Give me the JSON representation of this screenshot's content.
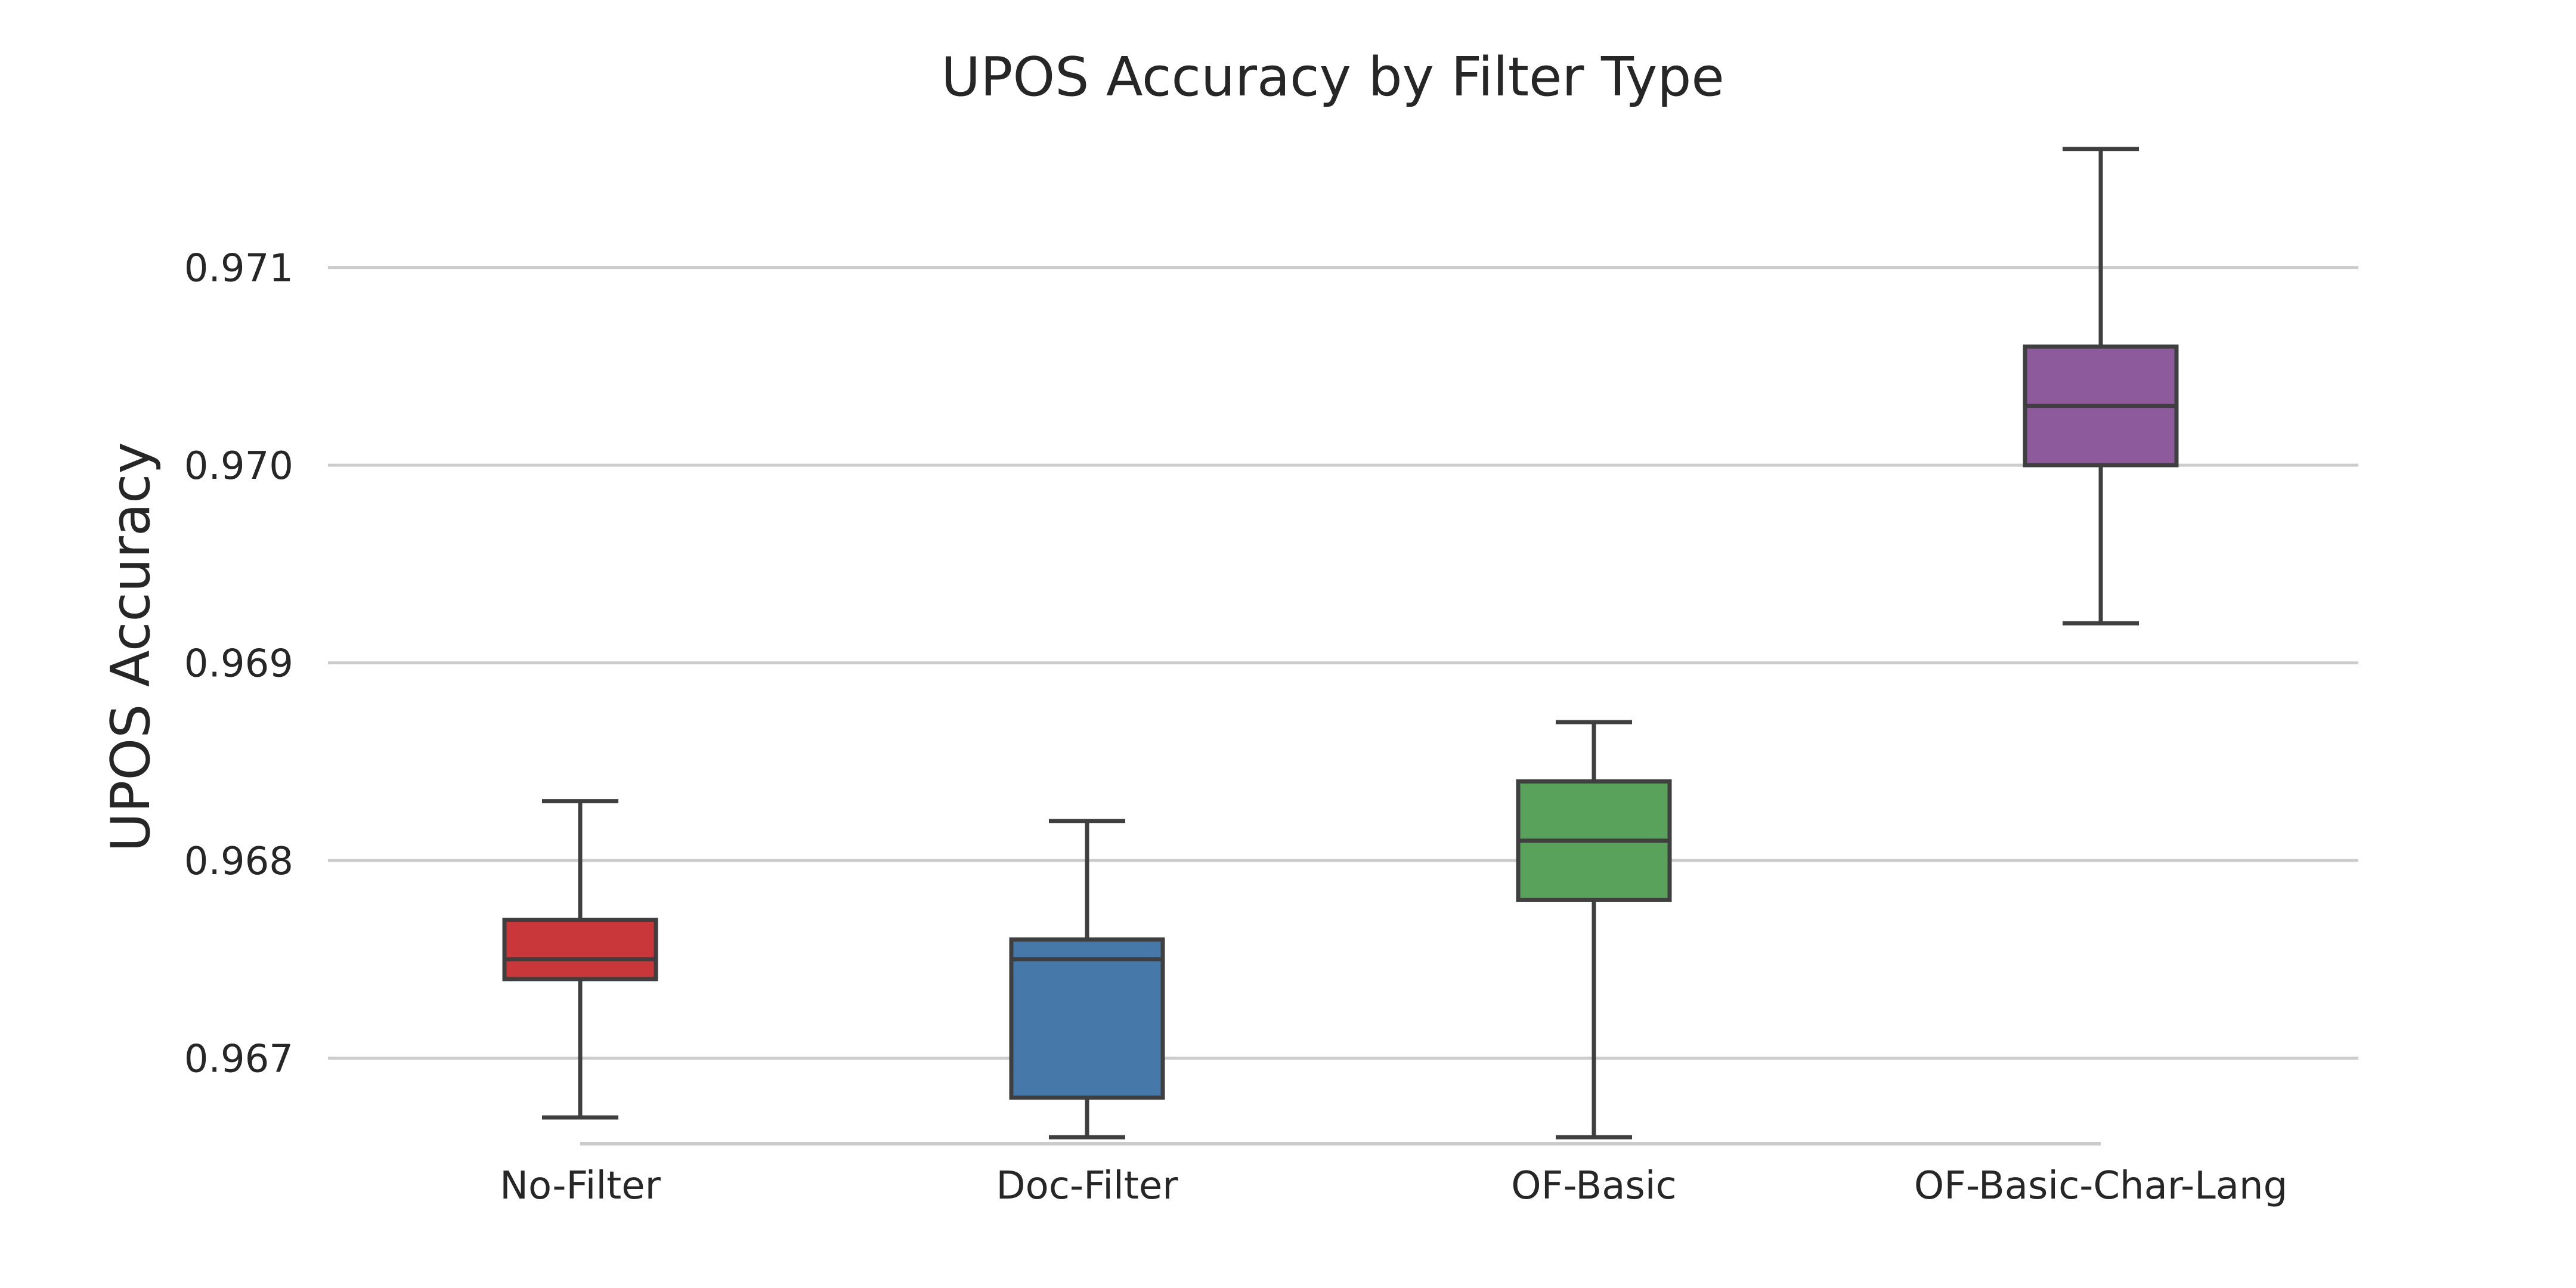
{
  "chart_data": {
    "type": "box",
    "title": "UPOS Accuracy by Filter Type",
    "xlabel": "",
    "ylabel": "UPOS Accuracy",
    "ylim": [
      0.96635,
      0.97175
    ],
    "yticks": [
      0.967,
      0.968,
      0.969,
      0.97,
      0.971
    ],
    "ytick_labels": [
      "0.967",
      "0.968",
      "0.969",
      "0.970",
      "0.971"
    ],
    "grid": "horizontal",
    "categories": [
      "No-Filter",
      "Doc-Filter",
      "OF-Basic",
      "OF-Basic-Char-Lang"
    ],
    "boxes": [
      {
        "category": "No-Filter",
        "color": "#c9373a",
        "whisker_low": 0.9667,
        "q1": 0.9674,
        "median": 0.9675,
        "q3": 0.9677,
        "whisker_high": 0.9683
      },
      {
        "category": "Doc-Filter",
        "color": "#4679a9",
        "whisker_low": 0.9666,
        "q1": 0.9668,
        "median": 0.9675,
        "q3": 0.9676,
        "whisker_high": 0.9682
      },
      {
        "category": "OF-Basic",
        "color": "#58a25b",
        "whisker_low": 0.9666,
        "q1": 0.9678,
        "median": 0.9681,
        "q3": 0.9684,
        "whisker_high": 0.9687
      },
      {
        "category": "OF-Basic-Char-Lang",
        "color": "#8d5a9b",
        "whisker_low": 0.9692,
        "q1": 0.97,
        "median": 0.9703,
        "q3": 0.9706,
        "whisker_high": 0.9716
      }
    ]
  }
}
